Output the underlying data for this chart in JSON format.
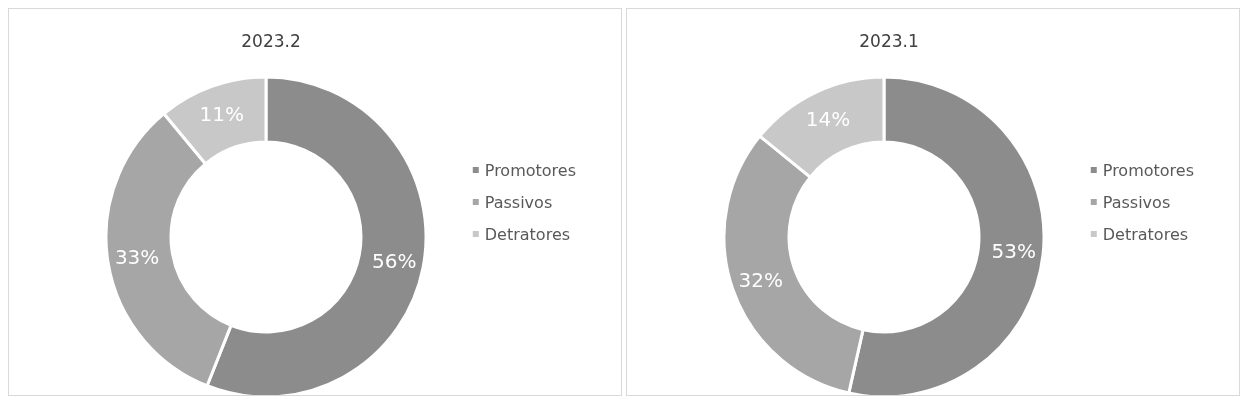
{
  "chart_data": [
    {
      "type": "donut",
      "title": "2023.2",
      "categories": [
        "Promotores",
        "Passivos",
        "Detratores"
      ],
      "values": [
        56,
        33,
        11
      ],
      "value_labels": [
        "56%",
        "33%",
        "11%"
      ],
      "colors": [
        "#8c8c8c",
        "#a6a6a6",
        "#c8c8c8"
      ],
      "legend": "right"
    },
    {
      "type": "donut",
      "title": "2023.1",
      "categories": [
        "Promotores",
        "Passivos",
        "Detratores"
      ],
      "values": [
        53,
        32,
        14
      ],
      "value_labels": [
        "53%",
        "32%",
        "14%"
      ],
      "colors": [
        "#8c8c8c",
        "#a6a6a6",
        "#c8c8c8"
      ],
      "legend": "right"
    }
  ]
}
